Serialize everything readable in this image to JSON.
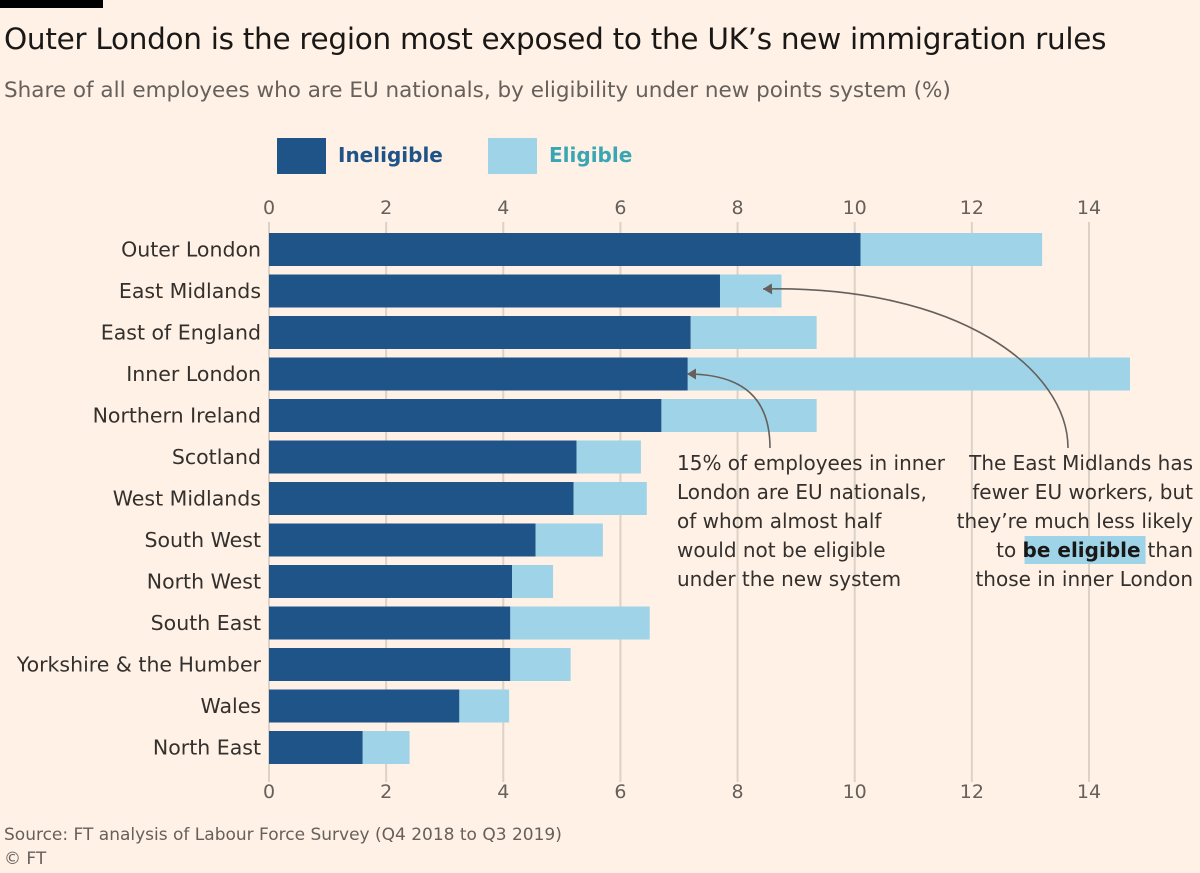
{
  "header": {
    "title": "Outer London is the region most exposed to the UK’s new immigration rules",
    "subtitle": "Share of all employees who are EU nationals, by eligibility under new points system (%)"
  },
  "legend": {
    "ineligible_label": "Ineligible",
    "eligible_label": "Eligible"
  },
  "colors": {
    "background": "#fff1e5",
    "ineligible": "#1f5489",
    "eligible": "#9ed3e8",
    "ineligible_text": "#1f5489",
    "eligible_text": "#3aa6b3",
    "grid": "#dcd2c8",
    "tick_text": "#66605c",
    "label_text": "#33302e",
    "annotation_arrow": "#66605c"
  },
  "chart_data": {
    "type": "bar",
    "orientation": "horizontal",
    "stacked": true,
    "categories": [
      "Outer London",
      "East Midlands",
      "East of England",
      "Inner London",
      "Northern Ireland",
      "Scotland",
      "West Midlands",
      "South West",
      "North West",
      "South East",
      "Yorkshire & the Humber",
      "Wales",
      "North East"
    ],
    "series": [
      {
        "name": "Ineligible",
        "values": [
          10.1,
          7.7,
          7.2,
          7.15,
          6.7,
          5.25,
          5.2,
          4.55,
          4.15,
          4.12,
          4.12,
          3.25,
          1.6
        ]
      },
      {
        "name": "Eligible",
        "values": [
          3.1,
          1.05,
          2.15,
          7.55,
          2.65,
          1.1,
          1.25,
          1.15,
          0.7,
          2.38,
          1.03,
          0.85,
          0.8
        ]
      }
    ],
    "xlim": [
      0,
      15
    ],
    "xticks": [
      0,
      2,
      4,
      6,
      8,
      10,
      12,
      14
    ],
    "xtick_labels": [
      "0",
      "2",
      "4",
      "6",
      "8",
      "10",
      "12",
      "14"
    ],
    "grid": true,
    "legend_position": "top-left",
    "annotations": [
      {
        "target": "Inner London",
        "lines": [
          "15% of employees in inner",
          "London are EU nationals,",
          "of whom almost half",
          "||would not be eligible",
          "under the new system"
        ]
      },
      {
        "target": "East Midlands",
        "lines": [
          "The East Midlands has",
          "fewer EU workers, but",
          "they’re much less likely",
          "to |be eligible| than",
          "those in inner London"
        ]
      }
    ]
  },
  "footer": {
    "source": "Source: FT analysis of Labour Force Survey (Q4 2018 to Q3 2019)",
    "credit": "© FT"
  }
}
